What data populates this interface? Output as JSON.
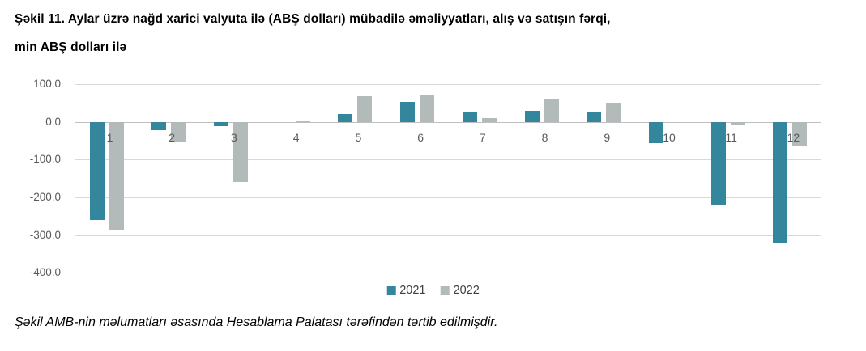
{
  "title": {
    "line1": "Şəkil 11. Aylar üzrə nağd xarici valyuta ilə (ABŞ dolları) mübadilə əməliyyatları, alış və satışın fərqi,",
    "line2": "min ABŞ dolları ilə"
  },
  "footer": {
    "text": "Şəkil AMB-nin məlumatları əsasında Hesablama Palatası tərəfindən tərtib edilmişdir."
  },
  "chart_data": {
    "type": "bar",
    "categories": [
      "1",
      "2",
      "3",
      "4",
      "5",
      "6",
      "7",
      "8",
      "9",
      "10",
      "11",
      "12"
    ],
    "series": [
      {
        "name": "2021",
        "color": "#34869C",
        "values": [
          -260,
          -22,
          -12,
          0,
          20,
          52,
          25,
          30,
          26,
          -57,
          -221,
          -320
        ]
      },
      {
        "name": "2022",
        "color": "#B2BABA",
        "values": [
          -289,
          -52,
          -160,
          4,
          68,
          72,
          10,
          62,
          50,
          0,
          -8,
          -66
        ]
      }
    ],
    "title": "Aylar üzrə nağd xarici valyuta ilə (ABŞ dolları) mübadilə əməliyyatları, alış və satışın fərqi, min ABŞ dolları ilə",
    "xlabel": "",
    "ylabel": "",
    "ylim": [
      -400,
      100
    ],
    "yticks": [
      100,
      0,
      -100,
      -200,
      -300,
      -400
    ],
    "ytick_labels": [
      "100.0",
      "0.0",
      "-100.0",
      "-200.0",
      "-300.0",
      "-400.0"
    ],
    "grid": true,
    "legend_position": "bottom",
    "colors": {
      "gridline": "#D9D9D9",
      "zero_line": "#BFBFBF",
      "axis_text": "#595959"
    }
  }
}
